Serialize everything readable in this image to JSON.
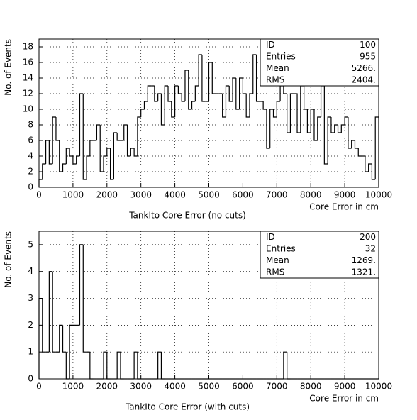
{
  "chart_data": [
    {
      "type": "histogram",
      "title": "TankIto Core Error (no cuts)",
      "x_label": "Core Error in cm",
      "y_label": "No. of Events",
      "bins": [
        0,
        100,
        200,
        300,
        400,
        500,
        600,
        700,
        800,
        900,
        1000,
        1100,
        1200,
        1300,
        1400,
        1500,
        1600,
        1700,
        1800,
        1900,
        2000,
        2100,
        2200,
        2300,
        2400,
        2500,
        2600,
        2700,
        2800,
        2900,
        3000,
        3100,
        3200,
        3300,
        3400,
        3500,
        3600,
        3700,
        3800,
        3900,
        4000,
        4100,
        4200,
        4300,
        4400,
        4500,
        4600,
        4700,
        4800,
        4900,
        5000,
        5100,
        5200,
        5300,
        5400,
        5500,
        5600,
        5700,
        5800,
        5900,
        6000,
        6100,
        6200,
        6300,
        6400,
        6500,
        6600,
        6700,
        6800,
        6900,
        7000,
        7100,
        7200,
        7300,
        7400,
        7500,
        7600,
        7700,
        7800,
        7900,
        8000,
        8100,
        8200,
        8300,
        8400,
        8500,
        8600,
        8700,
        8800,
        8900,
        9000,
        9100,
        9200,
        9300,
        9400,
        9500,
        9600,
        9700,
        9800,
        9900,
        10000
      ],
      "values": [
        1,
        3,
        6,
        3,
        9,
        6,
        2,
        3,
        5,
        4,
        3,
        4,
        12,
        1,
        4,
        6,
        6,
        8,
        2,
        4,
        5,
        1,
        7,
        6,
        6,
        8,
        4,
        5,
        4,
        9,
        10,
        11,
        13,
        13,
        11,
        12,
        8,
        13,
        11,
        9,
        13,
        12,
        11,
        15,
        10,
        11,
        13,
        17,
        11,
        11,
        16,
        12,
        12,
        12,
        9,
        13,
        11,
        14,
        10,
        14,
        12,
        9,
        12,
        17,
        11,
        11,
        10,
        5,
        10,
        9,
        11,
        13,
        12,
        7,
        12,
        12,
        7,
        13,
        10,
        7,
        10,
        6,
        9,
        13,
        3,
        9,
        7,
        8,
        7,
        8,
        9,
        5,
        6,
        5,
        4,
        4,
        2,
        3,
        1,
        9
      ],
      "xlim": [
        0,
        10000
      ],
      "ylim": [
        0,
        19
      ],
      "xticks": [
        0,
        1000,
        2000,
        3000,
        4000,
        5000,
        6000,
        7000,
        8000,
        9000,
        10000
      ],
      "yticks": [
        0,
        2,
        4,
        6,
        8,
        10,
        12,
        14,
        16,
        18
      ],
      "grid": true,
      "color": "#000000",
      "stats": [
        {
          "label": "ID",
          "value": "100"
        },
        {
          "label": "Entries",
          "value": "955"
        },
        {
          "label": "Mean",
          "value": "5266."
        },
        {
          "label": "RMS",
          "value": "2404."
        }
      ]
    },
    {
      "type": "histogram",
      "title": "TankIto Core Error (with cuts)",
      "x_label": "Core Error in cm",
      "y_label": "No. of Events",
      "bins": [
        0,
        100,
        200,
        300,
        400,
        500,
        600,
        700,
        800,
        900,
        1000,
        1100,
        1200,
        1300,
        1400,
        1500,
        1600,
        1700,
        1800,
        1900,
        2000,
        2100,
        2200,
        2300,
        2400,
        2500,
        2600,
        2700,
        2800,
        2900,
        3000,
        3100,
        3200,
        3300,
        3400,
        3500,
        3600,
        3700,
        3800,
        3900,
        4000,
        4100,
        4200,
        4300,
        4400,
        4500,
        4600,
        4700,
        4800,
        4900,
        5000,
        5100,
        5200,
        5300,
        5400,
        5500,
        5600,
        5700,
        5800,
        5900,
        6000,
        6100,
        6200,
        6300,
        6400,
        6500,
        6600,
        6700,
        6800,
        6900,
        7000,
        7100,
        7200,
        7300,
        7400,
        7500,
        7600,
        7700,
        7800,
        7900,
        8000,
        8100,
        8200,
        8300,
        8400,
        8500,
        8600,
        8700,
        8800,
        8900,
        9000,
        9100,
        9200,
        9300,
        9400,
        9500,
        9600,
        9700,
        9800,
        9900,
        10000
      ],
      "values": [
        3,
        1,
        1,
        4,
        1,
        1,
        2,
        1,
        0,
        2,
        2,
        2,
        5,
        1,
        1,
        0,
        0,
        0,
        0,
        1,
        0,
        0,
        0,
        1,
        0,
        0,
        0,
        0,
        1,
        0,
        0,
        0,
        0,
        0,
        0,
        1,
        0,
        0,
        0,
        0,
        0,
        0,
        0,
        0,
        0,
        0,
        0,
        0,
        0,
        0,
        0,
        0,
        0,
        0,
        0,
        0,
        0,
        0,
        0,
        0,
        0,
        0,
        0,
        0,
        0,
        0,
        0,
        0,
        0,
        0,
        0,
        0,
        1,
        0,
        0,
        0,
        0,
        0,
        0,
        0,
        0,
        0,
        0,
        0,
        0,
        0,
        0,
        0,
        0,
        0,
        0,
        0,
        0,
        0,
        0,
        0,
        0,
        0,
        0,
        0
      ],
      "xlim": [
        0,
        10000
      ],
      "ylim": [
        0,
        5.5
      ],
      "xticks": [
        0,
        1000,
        2000,
        3000,
        4000,
        5000,
        6000,
        7000,
        8000,
        9000,
        10000
      ],
      "yticks": [
        0,
        1,
        2,
        3,
        4,
        5
      ],
      "grid": true,
      "color": "#000000",
      "stats": [
        {
          "label": "ID",
          "value": "200"
        },
        {
          "label": "Entries",
          "value": "32"
        },
        {
          "label": "Mean",
          "value": "1269."
        },
        {
          "label": "RMS",
          "value": "1321."
        }
      ]
    }
  ]
}
